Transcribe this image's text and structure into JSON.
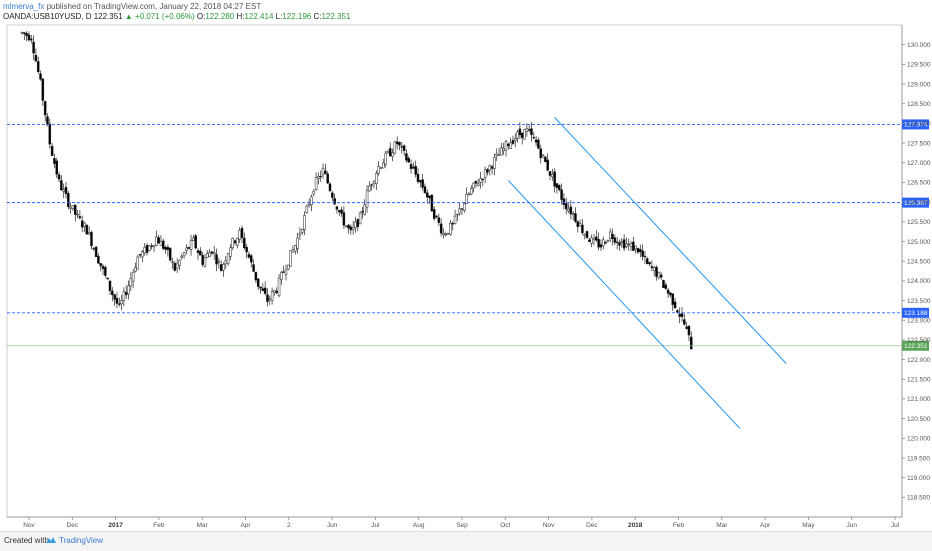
{
  "header": {
    "user": "mlmerva_fx",
    "published": " published on TradingView.com, January 22, 2018 04:27 EST",
    "symbol_line": "OANDA:USB10YUSD, D",
    "last": "122.351",
    "change_arrow": "▲",
    "change": "+0.071 (+0.06%)",
    "o_label": "O:",
    "o_value": "122.280",
    "h_label": "H:",
    "h_value": "122.414",
    "l_label": "L:",
    "l_value": "122.196",
    "c_label": "C:",
    "c_value": "122.351"
  },
  "footer": {
    "created": "Created with",
    "brand": "TradingView"
  },
  "colors": {
    "candle_up": "#ffffff",
    "candle_down": "#000000",
    "wick": "#222222",
    "level": "#2962ff",
    "channel": "#2196f3",
    "last_price_bg": "#5aa35a",
    "level_label_bg": "#2962ff"
  },
  "chart_data": {
    "type": "candlestick",
    "y_range": [
      118.0,
      130.5
    ],
    "y_ticks": [
      "118.500",
      "119.000",
      "119.500",
      "120.000",
      "120.500",
      "121.000",
      "121.500",
      "122.000",
      "122.500",
      "123.000",
      "123.500",
      "124.000",
      "124.500",
      "125.000",
      "125.500",
      "126.000",
      "126.500",
      "127.000",
      "127.500",
      "128.000",
      "128.500",
      "129.000",
      "129.500",
      "130.000"
    ],
    "x_ticks": [
      {
        "label": "Nov",
        "bold": false
      },
      {
        "label": "Dec",
        "bold": false
      },
      {
        "label": "2017",
        "bold": true
      },
      {
        "label": "Feb",
        "bold": false
      },
      {
        "label": "Mar",
        "bold": false
      },
      {
        "label": "Apr",
        "bold": false
      },
      {
        "label": "2",
        "bold": false
      },
      {
        "label": "Jun",
        "bold": false
      },
      {
        "label": "Jul",
        "bold": false
      },
      {
        "label": "Aug",
        "bold": false
      },
      {
        "label": "Sep",
        "bold": false
      },
      {
        "label": "Oct",
        "bold": false
      },
      {
        "label": "Nov",
        "bold": false
      },
      {
        "label": "Dec",
        "bold": false
      },
      {
        "label": "2018",
        "bold": true
      },
      {
        "label": "Feb",
        "bold": false
      },
      {
        "label": "Mar",
        "bold": false
      },
      {
        "label": "Apr",
        "bold": false
      },
      {
        "label": "May",
        "bold": false
      },
      {
        "label": "Jun",
        "bold": false
      },
      {
        "label": "Jul",
        "bold": false
      }
    ],
    "levels": [
      {
        "value": 127.974,
        "label": "127.974"
      },
      {
        "value": 125.987,
        "label": "125.987"
      },
      {
        "value": 123.188,
        "label": "123.188"
      }
    ],
    "last_price": {
      "value": 122.351,
      "label": "122.351"
    },
    "price_path": [
      [
        0,
        130.3
      ],
      [
        4,
        130.2
      ],
      [
        8,
        129.0
      ],
      [
        12,
        127.5
      ],
      [
        16,
        126.5
      ],
      [
        20,
        126.0
      ],
      [
        24,
        125.6
      ],
      [
        28,
        125.3
      ],
      [
        34,
        124.4
      ],
      [
        38,
        123.8
      ],
      [
        42,
        123.3
      ],
      [
        46,
        123.9
      ],
      [
        50,
        124.6
      ],
      [
        54,
        124.8
      ],
      [
        58,
        125.1
      ],
      [
        62,
        124.8
      ],
      [
        66,
        124.3
      ],
      [
        70,
        124.7
      ],
      [
        74,
        125.0
      ],
      [
        78,
        124.5
      ],
      [
        82,
        124.8
      ],
      [
        86,
        124.3
      ],
      [
        90,
        124.9
      ],
      [
        94,
        125.2
      ],
      [
        98,
        124.6
      ],
      [
        102,
        123.9
      ],
      [
        106,
        123.5
      ],
      [
        110,
        123.8
      ],
      [
        114,
        124.4
      ],
      [
        118,
        124.9
      ],
      [
        122,
        125.6
      ],
      [
        126,
        126.4
      ],
      [
        130,
        126.8
      ],
      [
        134,
        126.2
      ],
      [
        138,
        125.6
      ],
      [
        142,
        125.2
      ],
      [
        146,
        125.6
      ],
      [
        150,
        126.4
      ],
      [
        154,
        126.9
      ],
      [
        158,
        127.2
      ],
      [
        162,
        127.5
      ],
      [
        166,
        127.1
      ],
      [
        170,
        126.7
      ],
      [
        174,
        126.3
      ],
      [
        178,
        125.7
      ],
      [
        182,
        125.2
      ],
      [
        186,
        125.4
      ],
      [
        190,
        125.9
      ],
      [
        194,
        126.3
      ],
      [
        198,
        126.6
      ],
      [
        202,
        126.9
      ],
      [
        206,
        127.2
      ],
      [
        210,
        127.5
      ],
      [
        214,
        127.7
      ],
      [
        218,
        127.8
      ],
      [
        222,
        127.5
      ],
      [
        226,
        127.0
      ],
      [
        230,
        126.5
      ],
      [
        234,
        126.0
      ],
      [
        238,
        125.7
      ],
      [
        242,
        125.3
      ],
      [
        246,
        125.0
      ],
      [
        250,
        124.9
      ],
      [
        254,
        125.2
      ],
      [
        258,
        125.0
      ],
      [
        262,
        124.9
      ],
      [
        266,
        124.8
      ],
      [
        270,
        124.4
      ],
      [
        274,
        124.2
      ],
      [
        278,
        123.8
      ],
      [
        282,
        123.4
      ],
      [
        286,
        122.9
      ],
      [
        289,
        122.35
      ]
    ],
    "channel_lines": [
      {
        "from": [
          230,
          128.15
        ],
        "to": [
          330,
          121.9
        ]
      },
      {
        "from": [
          210,
          126.55
        ],
        "to": [
          310,
          120.25
        ]
      }
    ]
  }
}
